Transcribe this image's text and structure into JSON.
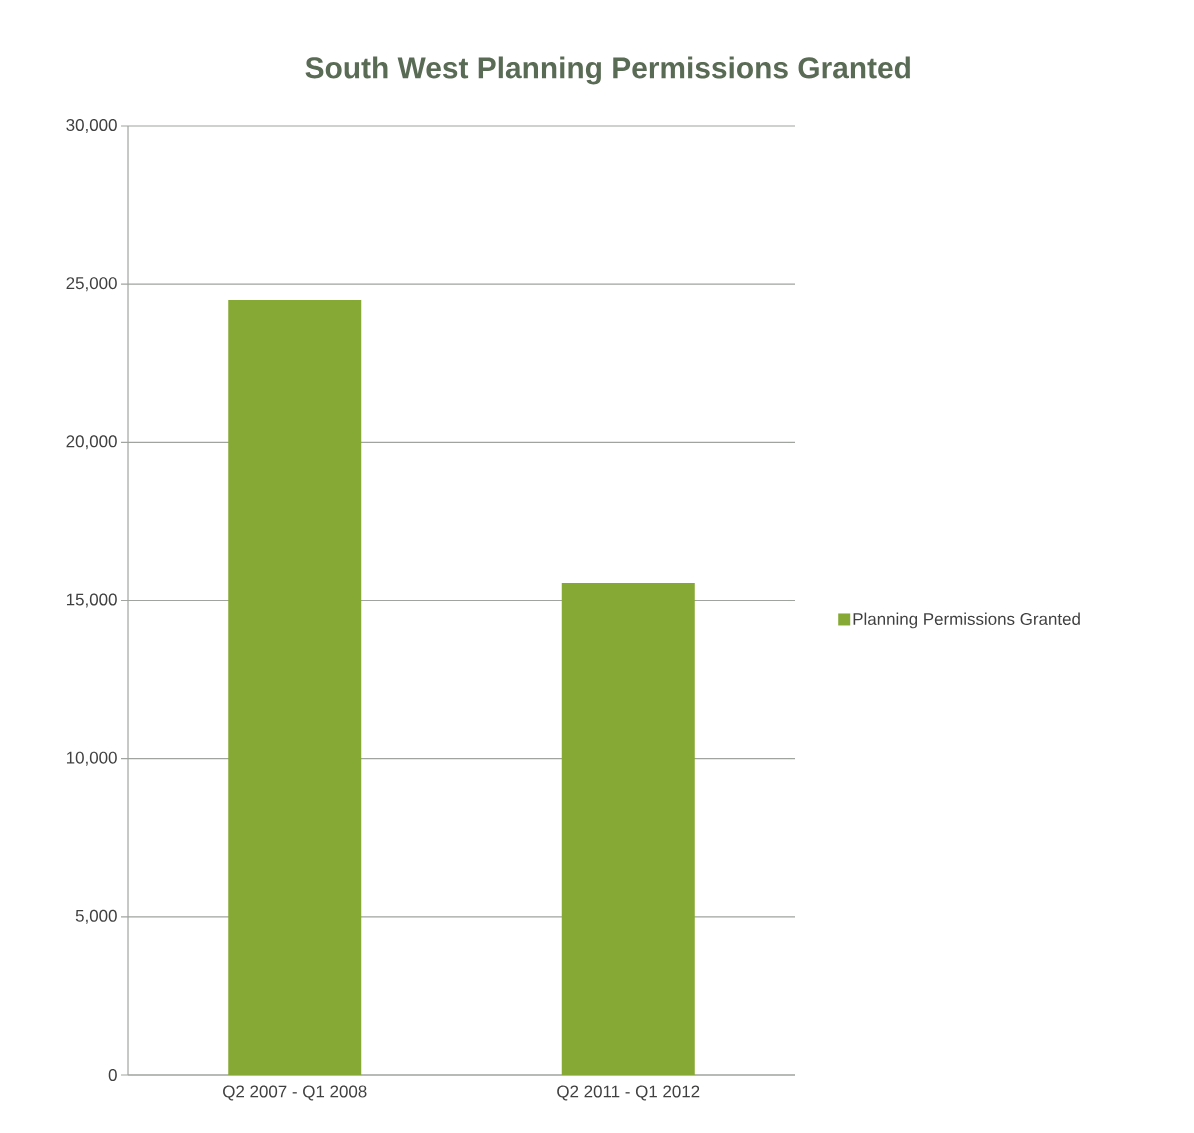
{
  "chart_data": {
    "type": "bar",
    "title": "South West Planning Permissions Granted",
    "categories": [
      "Q2 2007 - Q1 2008",
      "Q2 2011 - Q1 2012"
    ],
    "series": [
      {
        "name": "Planning Permissions Granted",
        "color": "#86a935",
        "values": [
          24500,
          15550
        ]
      }
    ],
    "ylim": [
      0,
      30000
    ],
    "yticks": [
      {
        "value": 0,
        "label": "0"
      },
      {
        "value": 5000,
        "label": "5,000"
      },
      {
        "value": 10000,
        "label": "10,000"
      },
      {
        "value": 15000,
        "label": "15,000"
      },
      {
        "value": 20000,
        "label": "20,000"
      },
      {
        "value": 25000,
        "label": "25,000"
      },
      {
        "value": 30000,
        "label": "30,000"
      }
    ],
    "grid": "y",
    "legend": "right"
  }
}
